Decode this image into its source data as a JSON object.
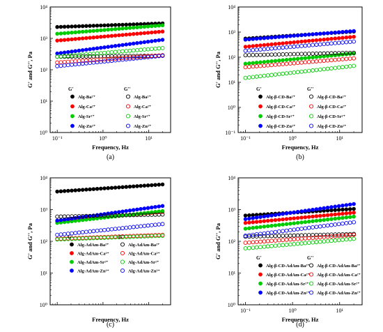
{
  "chart_data": [
    {
      "type": "scatter",
      "panel_label": "(a)",
      "xlabel": "Frequency, Hz",
      "ylabel": "G' and G'', Pa",
      "xscale": "log",
      "yscale": "log",
      "xlim": [
        0.07,
        30
      ],
      "ylim": [
        1,
        10000
      ],
      "x_ticks": [
        "10⁻¹",
        "10⁰",
        "10¹"
      ],
      "y_ticks": [
        "10⁰",
        "10¹",
        "10²",
        "10³",
        "10⁴"
      ],
      "legend_placement": "bottom-left",
      "legend_headers": [
        "G'",
        "G''"
      ],
      "x_range": [
        0.1,
        20
      ],
      "series": [
        {
          "name": "Alg-Ba²⁺",
          "modulus": "G'",
          "color": "#000000",
          "filled": true,
          "y_start": 2300,
          "y_end": 3000
        },
        {
          "name": "Alg-Ca²⁺",
          "modulus": "G'",
          "color": "#ff0000",
          "filled": true,
          "y_start": 850,
          "y_end": 1650
        },
        {
          "name": "Alg-Sr²⁺",
          "modulus": "G'",
          "color": "#00cc00",
          "filled": true,
          "y_start": 1400,
          "y_end": 2600
        },
        {
          "name": "Alg-Zn²⁺",
          "modulus": "G'",
          "color": "#0000ff",
          "filled": true,
          "y_start": 330,
          "y_end": 900
        },
        {
          "name": "Alg-Ba²⁺",
          "modulus": "G''",
          "color": "#000000",
          "filled": false,
          "y_start": 260,
          "y_end": 280
        },
        {
          "name": "Alg-Ca²⁺",
          "modulus": "G''",
          "color": "#ff0000",
          "filled": false,
          "y_start": 170,
          "y_end": 290
        },
        {
          "name": "Alg-Sr²⁺",
          "modulus": "G''",
          "color": "#00cc00",
          "filled": false,
          "y_start": 260,
          "y_end": 490
        },
        {
          "name": "Alg-Zn²⁺",
          "modulus": "G''",
          "color": "#0000ff",
          "filled": false,
          "y_start": 130,
          "y_end": 280
        }
      ]
    },
    {
      "type": "scatter",
      "panel_label": "(b)",
      "xlabel": "Frequency, Hz",
      "ylabel": "G' and G'', Pa",
      "xscale": "log",
      "yscale": "log",
      "xlim": [
        0.07,
        30
      ],
      "ylim": [
        0.1,
        10000
      ],
      "x_ticks": [
        "10⁻¹",
        "10⁰",
        "10¹"
      ],
      "y_ticks": [
        "10⁻¹",
        "10⁰",
        "10¹",
        "10²",
        "10³",
        "10⁴"
      ],
      "legend_placement": "bottom-right",
      "legend_headers": [
        "G'",
        "G''"
      ],
      "x_range": [
        0.1,
        20
      ],
      "series": [
        {
          "name": "Alg-β-CD-Ba²⁺",
          "modulus": "G'",
          "color": "#000000",
          "filled": true,
          "y_start": 550,
          "y_end": 1050
        },
        {
          "name": "Alg-β-CD-Ca²⁺",
          "modulus": "G'",
          "color": "#ff0000",
          "filled": true,
          "y_start": 260,
          "y_end": 650
        },
        {
          "name": "Alg-β-CD-Sr²⁺",
          "modulus": "G'",
          "color": "#00cc00",
          "filled": true,
          "y_start": 55,
          "y_end": 140
        },
        {
          "name": "Alg-β-CD-Zn²⁺",
          "modulus": "G'",
          "color": "#0000ff",
          "filled": true,
          "y_start": 500,
          "y_end": 1100
        },
        {
          "name": "Alg-β-CD-Ba²⁺",
          "modulus": "G''",
          "color": "#000000",
          "filled": false,
          "y_start": 120,
          "y_end": 150
        },
        {
          "name": "Alg-β-CD-Ca²⁺",
          "modulus": "G''",
          "color": "#ff0000",
          "filled": false,
          "y_start": 40,
          "y_end": 90
        },
        {
          "name": "Alg-β-CD-Sr²⁺",
          "modulus": "G''",
          "color": "#00cc00",
          "filled": false,
          "y_start": 15,
          "y_end": 45
        },
        {
          "name": "Alg-β-CD-Zn²⁺",
          "modulus": "G''",
          "color": "#0000ff",
          "filled": false,
          "y_start": 180,
          "y_end": 420
        }
      ]
    },
    {
      "type": "scatter",
      "panel_label": "(c)",
      "xlabel": "Frequency, Hz",
      "ylabel": "G' and G'', Pa",
      "xscale": "log",
      "yscale": "log",
      "xlim": [
        0.07,
        30
      ],
      "ylim": [
        1,
        10000
      ],
      "x_ticks": [],
      "y_ticks": [
        "10⁰",
        "10¹",
        "10²",
        "10³",
        "10⁴"
      ],
      "legend_placement": "bottom",
      "legend_headers": [
        "G'",
        "G''"
      ],
      "x_range": [
        0.1,
        20
      ],
      "series": [
        {
          "name": "Alg-AdAm-Ba²⁺",
          "modulus": "G'",
          "color": "#000000",
          "filled": true,
          "y_start": 3700,
          "y_end": 6200
        },
        {
          "name": "Alg-AdAm-Ca²⁺",
          "modulus": "G'",
          "color": "#ff0000",
          "filled": true,
          "y_start": 420,
          "y_end": 850
        },
        {
          "name": "Alg-AdAm-Sr²⁺",
          "modulus": "G'",
          "color": "#00cc00",
          "filled": true,
          "y_start": 380,
          "y_end": 900
        },
        {
          "name": "Alg-AdAm-Zn²⁺",
          "modulus": "G'",
          "color": "#0000ff",
          "filled": true,
          "y_start": 450,
          "y_end": 1300
        },
        {
          "name": "Alg-AdAm-Ba²⁺",
          "modulus": "G''",
          "color": "#000000",
          "filled": false,
          "y_start": 600,
          "y_end": 700
        },
        {
          "name": "Alg-AdAm-Ca²⁺",
          "modulus": "G''",
          "color": "#ff0000",
          "filled": false,
          "y_start": 120,
          "y_end": 160
        },
        {
          "name": "Alg-AdAm-Sr²⁺",
          "modulus": "G''",
          "color": "#00cc00",
          "filled": false,
          "y_start": 115,
          "y_end": 150
        },
        {
          "name": "Alg-AdAm-Zn²⁺",
          "modulus": "G''",
          "color": "#0000ff",
          "filled": false,
          "y_start": 160,
          "y_end": 350
        }
      ]
    },
    {
      "type": "scatter",
      "panel_label": "(d)",
      "xlabel": "Frequency, Hz",
      "ylabel": "G' and G'', Pa",
      "xscale": "log",
      "yscale": "log",
      "xlim": [
        0.07,
        30
      ],
      "ylim": [
        1,
        10000
      ],
      "x_ticks": [
        "10⁻¹",
        "10⁰",
        "10¹"
      ],
      "y_ticks": [
        "10⁰",
        "10¹",
        "10²",
        "10³",
        "10⁴"
      ],
      "legend_placement": "bottom-right",
      "legend_headers": [
        "G'",
        "G''"
      ],
      "x_range": [
        0.1,
        20
      ],
      "series": [
        {
          "name": "Alg-β-CD-AdAm-Ba²⁺",
          "modulus": "G'",
          "color": "#000000",
          "filled": true,
          "y_start": 650,
          "y_end": 1050
        },
        {
          "name": "Alg-β-CD-AdAm-Ca²⁺",
          "modulus": "G'",
          "color": "#ff0000",
          "filled": true,
          "y_start": 380,
          "y_end": 800
        },
        {
          "name": "Alg-β-CD-AdAm-Sr²⁺",
          "modulus": "G'",
          "color": "#00cc00",
          "filled": true,
          "y_start": 250,
          "y_end": 600
        },
        {
          "name": "Alg-β-CD-AdAm-Zn²⁺",
          "modulus": "G'",
          "color": "#0000ff",
          "filled": true,
          "y_start": 500,
          "y_end": 1500
        },
        {
          "name": "Alg-β-CD-AdAm-Ba²⁺",
          "modulus": "G''",
          "color": "#000000",
          "filled": false,
          "y_start": 140,
          "y_end": 170
        },
        {
          "name": "Alg-β-CD-AdAm-Ca²⁺",
          "modulus": "G''",
          "color": "#ff0000",
          "filled": false,
          "y_start": 90,
          "y_end": 160
        },
        {
          "name": "Alg-β-CD-AdAm-Sr²⁺",
          "modulus": "G''",
          "color": "#00cc00",
          "filled": false,
          "y_start": 60,
          "y_end": 120
        },
        {
          "name": "Alg-β-CD-AdAm-Zn²⁺",
          "modulus": "G''",
          "color": "#0000ff",
          "filled": false,
          "y_start": 150,
          "y_end": 400
        }
      ]
    }
  ]
}
